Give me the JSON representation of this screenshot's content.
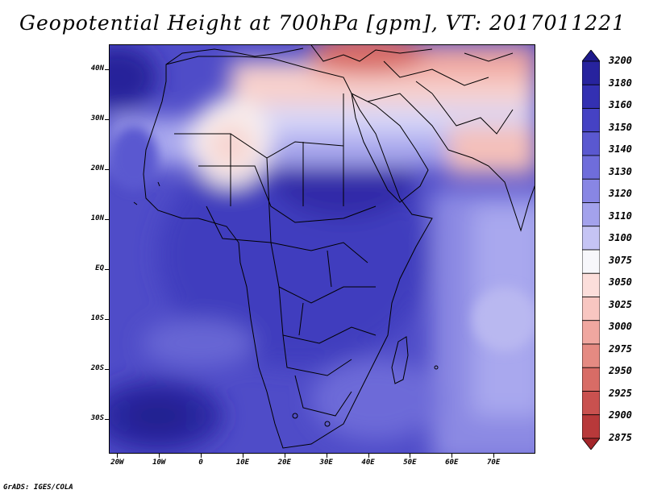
{
  "title": "Geopotential Height at 700hPa [gpm], VT: 2017011221",
  "footer": "GrADS: IGES/COLA",
  "map": {
    "lat_labels": [
      "40N",
      "30N",
      "20N",
      "10N",
      "EQ",
      "10S",
      "20S",
      "30S"
    ],
    "lat_values": [
      40,
      30,
      20,
      10,
      0,
      -10,
      -20,
      -30
    ],
    "lon_labels": [
      "20W",
      "10W",
      "0",
      "10E",
      "20E",
      "30E",
      "40E",
      "50E",
      "60E",
      "70E"
    ],
    "lon_values": [
      -20,
      -10,
      0,
      10,
      20,
      30,
      40,
      50,
      60,
      70
    ],
    "lon_range": [
      -22,
      80
    ],
    "lat_range": [
      -37,
      45
    ]
  },
  "colorbar": {
    "labels": [
      "3200",
      "3180",
      "3160",
      "3150",
      "3140",
      "3130",
      "3120",
      "3110",
      "3100",
      "3075",
      "3050",
      "3025",
      "3000",
      "2975",
      "2950",
      "2925",
      "2900",
      "2875"
    ],
    "colors": [
      "#1e1a8c",
      "#27239e",
      "#3330b2",
      "#4542c4",
      "#5a58d0",
      "#6f6ddb",
      "#8886e4",
      "#a3a2ec",
      "#c5c4f4",
      "#f7f7fb",
      "#fcdedb",
      "#f8c6c1",
      "#f0a7a0",
      "#e58a82",
      "#d86c66",
      "#c9514f",
      "#b8393a",
      "#a4262a"
    ]
  },
  "colors": {
    "ocean_deep": "#2722a0",
    "land_line": "#000000"
  }
}
